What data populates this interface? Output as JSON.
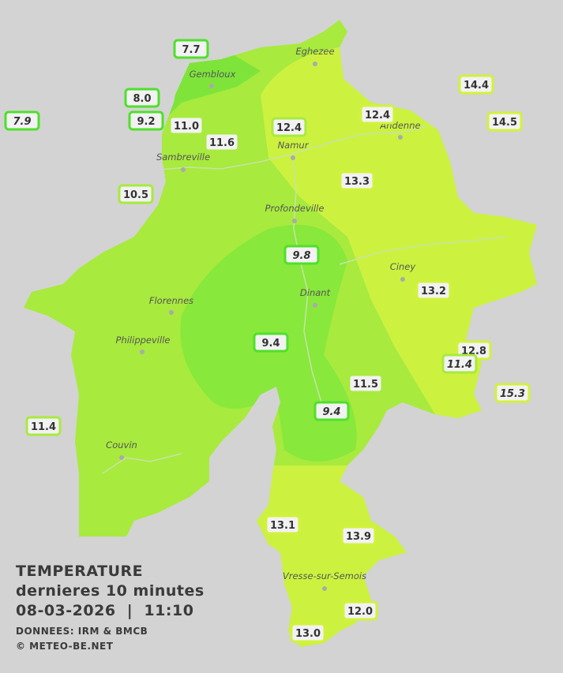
{
  "title": {
    "heading": "TEMPERATURE",
    "subtitle": "dernieres 10 minutes",
    "datetime": "08-03-2026  |  11:10",
    "source": "DONNEES: IRM & BMCB",
    "copyright": "© METEO-BE.NET"
  },
  "cities": [
    {
      "name": "Eghezee"
    },
    {
      "name": "Gembloux"
    },
    {
      "name": "Andenne"
    },
    {
      "name": "Namur"
    },
    {
      "name": "Sambreville"
    },
    {
      "name": "Profondeville"
    },
    {
      "name": "Ciney"
    },
    {
      "name": "Dinant"
    },
    {
      "name": "Florennes"
    },
    {
      "name": "Philippeville"
    },
    {
      "name": "Couvin"
    },
    {
      "name": "Vresse-sur-Semois"
    }
  ],
  "stations": [
    {
      "value": "7.7",
      "italic": false
    },
    {
      "value": "8.0",
      "italic": false
    },
    {
      "value": "9.2",
      "italic": false
    },
    {
      "value": "7.9",
      "italic": true
    },
    {
      "value": "11.0",
      "italic": false
    },
    {
      "value": "11.6",
      "italic": false
    },
    {
      "value": "10.5",
      "italic": false
    },
    {
      "value": "12.4",
      "italic": false
    },
    {
      "value": "12.4",
      "italic": false
    },
    {
      "value": "14.4",
      "italic": false
    },
    {
      "value": "14.5",
      "italic": false
    },
    {
      "value": "13.3",
      "italic": false
    },
    {
      "value": "9.8",
      "italic": true
    },
    {
      "value": "13.2",
      "italic": false
    },
    {
      "value": "9.4",
      "italic": false
    },
    {
      "value": "12.8",
      "italic": false
    },
    {
      "value": "11.4",
      "italic": true
    },
    {
      "value": "11.5",
      "italic": false
    },
    {
      "value": "15.3",
      "italic": true
    },
    {
      "value": "9.4",
      "italic": true
    },
    {
      "value": "11.4",
      "italic": false
    },
    {
      "value": "13.1",
      "italic": false
    },
    {
      "value": "13.9",
      "italic": false
    },
    {
      "value": "12.0",
      "italic": false
    },
    {
      "value": "13.0",
      "italic": false
    }
  ]
}
